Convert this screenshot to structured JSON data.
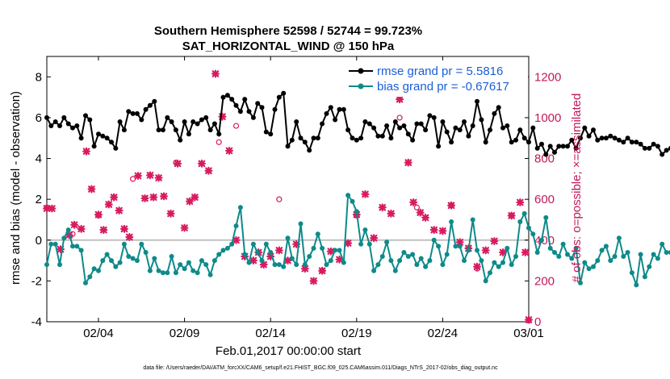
{
  "chart_data": {
    "type": "line",
    "title": "Southern Hemisphere 52598 / 52744 = 99.723%",
    "subtitle": "SAT_HORIZONTAL_WIND @ 150 hPa",
    "xlabel": "Feb.01,2017 00:00:00 start",
    "ylabel": "rmse and bias (model - observation)",
    "y2label": "# of obs: o=possible; ×=assimilated",
    "footnote": "data file: /Users/raeder/DAI/ATM_forcXX/CAM6_setup/f.e21.FHIST_BGC.f09_025.CAM6assim.011/Diags_NTrS_2017-02/obs_diag_output.nc",
    "xlim": [
      1,
      29
    ],
    "ylim": [
      -4,
      9
    ],
    "y2lim": [
      0,
      1300
    ],
    "yticks": [
      "-4",
      "-2",
      "0",
      "2",
      "4",
      "6",
      "8"
    ],
    "y2ticks": [
      "0",
      "200",
      "400",
      "600",
      "800",
      "1000",
      "1200"
    ],
    "xtick_labels": [
      "02/04",
      "02/09",
      "02/14",
      "02/19",
      "02/24",
      "03/01"
    ],
    "xtick_days": [
      4,
      9,
      14,
      19,
      24,
      29
    ],
    "legend": [
      {
        "name": "rmse grand pr = 5.5816",
        "color": "#000000"
      },
      {
        "name": "bias grand pr = -0.67617",
        "color": "#008b8b"
      }
    ],
    "colors": {
      "rmse": "#000000",
      "bias": "#0e8a8a",
      "obs": "#d81b60",
      "zero": "#c0c0c0"
    },
    "days_per_point": 0.25,
    "rmse": [
      6.0,
      5.6,
      5.8,
      5.6,
      6.0,
      5.7,
      5.5,
      5.6,
      5.0,
      6.1,
      5.9,
      4.6,
      5.2,
      5.1,
      5.0,
      4.8,
      4.5,
      5.8,
      5.4,
      6.3,
      6.2,
      6.2,
      5.9,
      6.4,
      6.6,
      6.8,
      5.4,
      5.4,
      6.0,
      5.8,
      5.4,
      4.9,
      5.8,
      5.2,
      5.8,
      5.7,
      5.9,
      6.0,
      5.4,
      5.7,
      5.2,
      7.0,
      7.1,
      6.9,
      6.6,
      6.3,
      6.9,
      6.3,
      6.0,
      6.7,
      6.5,
      5.3,
      5.2,
      6.4,
      7.0,
      7.2,
      4.6,
      4.9,
      5.8,
      5.0,
      4.8,
      4.4,
      5.0,
      5.0,
      5.7,
      6.2,
      6.5,
      5.9,
      6.4,
      6.4,
      5.4,
      5.0,
      4.9,
      5.0,
      5.8,
      5.7,
      5.5,
      5.1,
      5.1,
      5.6,
      5.0,
      5.8,
      5.5,
      5.6,
      5.2,
      4.9,
      5.7,
      5.7,
      5.4,
      6.1,
      6.0,
      4.6,
      5.8,
      5.3,
      4.8,
      5.5,
      5.4,
      5.8,
      5.1,
      5.6,
      6.8,
      5.9,
      4.8,
      5.4,
      6.2,
      6.5,
      5.5,
      5.6,
      4.8,
      4.9,
      5.4,
      5.0,
      4.8,
      5.5,
      4.5,
      4.7,
      4.2,
      4.6,
      4.3,
      4.6,
      4.6,
      4.6,
      4.9,
      4.5,
      5.0,
      5.5,
      5.1,
      5.4,
      4.9,
      5.0,
      5.0,
      5.1,
      5.0,
      4.9,
      4.8,
      5.0,
      4.8,
      4.8,
      4.7,
      4.5,
      4.5,
      4.7,
      4.6,
      4.2,
      4.4,
      4.5,
      4.4,
      4.7,
      4.0
    ],
    "bias": [
      -1.2,
      -0.2,
      -0.2,
      -1.2,
      0.1,
      0.5,
      -0.3,
      -0.3,
      -0.5,
      -2.1,
      -1.8,
      -1.4,
      -1.5,
      -1.0,
      -0.7,
      -1.0,
      -1.3,
      -1.1,
      -0.2,
      -0.8,
      -0.9,
      -1.0,
      -0.2,
      -0.6,
      -1.5,
      -0.9,
      -1.5,
      -1.6,
      -1.6,
      -0.8,
      -1.6,
      -1.2,
      -1.4,
      -1.1,
      -1.5,
      -1.6,
      -1.0,
      -1.2,
      -1.7,
      -1.0,
      -0.7,
      -0.5,
      -0.4,
      -0.2,
      0.7,
      1.6,
      -0.7,
      -1.1,
      -0.2,
      -0.6,
      -1.0,
      -0.2,
      -0.6,
      -1.2,
      -1.2,
      -1.3,
      0.1,
      -0.9,
      -1.2,
      0.8,
      -1.2,
      -0.8,
      -0.4,
      0.3,
      -0.4,
      -1.2,
      -1.0,
      -0.5,
      -0.5,
      -1.1,
      2.2,
      1.9,
      1.4,
      -0.2,
      0.5,
      -0.2,
      -1.5,
      -1.2,
      -0.8,
      -0.1,
      -1.0,
      -1.5,
      -1.0,
      -0.6,
      -0.8,
      -0.7,
      -1.2,
      -0.9,
      -1.3,
      -1.0,
      0.0,
      -0.3,
      -1.2,
      -0.7,
      0.9,
      -0.3,
      -0.3,
      -1.0,
      -0.5,
      1.0,
      -0.5,
      -1.0,
      -2.0,
      -1.6,
      -1.1,
      -1.3,
      -1.1,
      -0.4,
      -1.2,
      -0.8,
      0.9,
      1.3,
      0.6,
      0.3,
      -0.6,
      0.0,
      1.1,
      -0.4,
      -0.6,
      -0.8,
      -0.2,
      -0.7,
      -0.9,
      -0.4,
      -2.1,
      -1.1,
      -1.4,
      -1.3,
      -1.0,
      -0.5,
      -0.3,
      -1.0,
      -0.8,
      0.1,
      -0.8,
      -0.6,
      -1.6,
      -2.2,
      -0.7,
      -1.8,
      -1.3,
      -0.7,
      -0.9,
      -0.2,
      -0.6,
      -0.6,
      -0.6,
      -1.1,
      -0.3,
      -0.5,
      -1.2,
      -1.5
    ],
    "obs_assimilated": [
      [
        1.0,
        555
      ],
      [
        1.3,
        555
      ],
      [
        1.8,
        355
      ],
      [
        2.3,
        425
      ],
      [
        2.6,
        475
      ],
      [
        3.0,
        455
      ],
      [
        3.3,
        835
      ],
      [
        3.6,
        650
      ],
      [
        4.0,
        525
      ],
      [
        4.3,
        450
      ],
      [
        4.6,
        575
      ],
      [
        4.9,
        610
      ],
      [
        5.2,
        545
      ],
      [
        5.5,
        455
      ],
      [
        5.8,
        415
      ],
      [
        6.3,
        715
      ],
      [
        6.7,
        605
      ],
      [
        7.0,
        718
      ],
      [
        7.2,
        610
      ],
      [
        7.5,
        705
      ],
      [
        7.8,
        615
      ],
      [
        8.2,
        530
      ],
      [
        8.6,
        775
      ],
      [
        9.0,
        460
      ],
      [
        9.3,
        590
      ],
      [
        9.6,
        610
      ],
      [
        10.0,
        775
      ],
      [
        10.4,
        740
      ],
      [
        10.8,
        1215
      ],
      [
        11.2,
        1005
      ],
      [
        11.6,
        838
      ],
      [
        12.0,
        400
      ],
      [
        12.5,
        320
      ],
      [
        13.0,
        300
      ],
      [
        13.3,
        340
      ],
      [
        13.6,
        280
      ],
      [
        14.0,
        320
      ],
      [
        14.5,
        350
      ],
      [
        15.0,
        300
      ],
      [
        15.5,
        380
      ],
      [
        16.0,
        260
      ],
      [
        16.5,
        200
      ],
      [
        17.0,
        250
      ],
      [
        17.5,
        345
      ],
      [
        18.0,
        305
      ],
      [
        18.5,
        385
      ],
      [
        19.0,
        525
      ],
      [
        19.5,
        625
      ],
      [
        20.0,
        410
      ],
      [
        20.5,
        560
      ],
      [
        21.0,
        530
      ],
      [
        21.5,
        1090
      ],
      [
        22.0,
        780
      ],
      [
        22.3,
        585
      ],
      [
        22.7,
        535
      ],
      [
        23.0,
        510
      ],
      [
        23.5,
        450
      ],
      [
        24.0,
        445
      ],
      [
        24.5,
        570
      ],
      [
        25.0,
        390
      ],
      [
        25.5,
        360
      ],
      [
        26.0,
        270
      ],
      [
        26.5,
        350
      ],
      [
        27.0,
        395
      ],
      [
        27.5,
        340
      ],
      [
        28.0,
        520
      ],
      [
        28.5,
        585
      ],
      [
        28.8,
        340
      ],
      [
        29.0,
        10
      ]
    ],
    "obs_possible": [
      [
        1.0,
        560
      ],
      [
        2.5,
        430
      ],
      [
        4.0,
        520
      ],
      [
        6.0,
        700
      ],
      [
        8.5,
        780
      ],
      [
        11.0,
        880
      ],
      [
        12.0,
        960
      ],
      [
        14.5,
        600
      ],
      [
        17.0,
        250
      ],
      [
        19.0,
        520
      ],
      [
        21.5,
        1000
      ],
      [
        22.5,
        560
      ],
      [
        24.5,
        570
      ],
      [
        26.0,
        260
      ],
      [
        28.0,
        520
      ],
      [
        29.0,
        5
      ]
    ]
  }
}
